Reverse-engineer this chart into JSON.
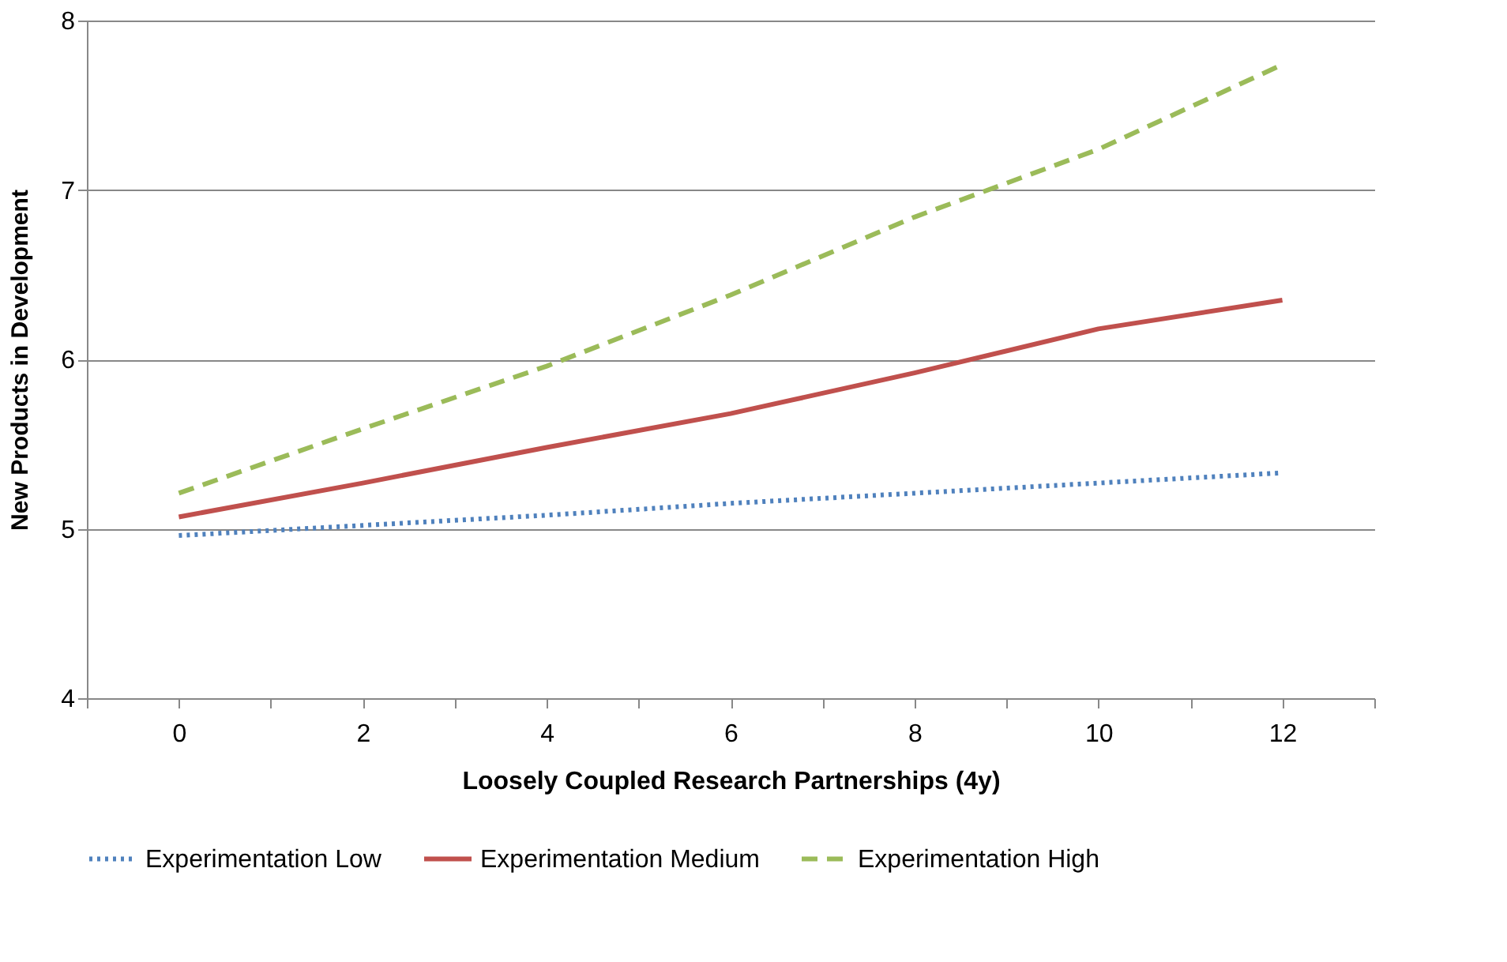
{
  "chart_data": {
    "type": "line",
    "xlabel": "Loosely Coupled Research Partnerships (4y)",
    "ylabel": "New Products in Development",
    "x": [
      0,
      2,
      4,
      6,
      8,
      10,
      12
    ],
    "series": [
      {
        "name": "Experimentation Low",
        "color": "#4f81bd",
        "line_style": "dotted",
        "values": [
          4.96,
          5.02,
          5.08,
          5.15,
          5.21,
          5.27,
          5.33
        ]
      },
      {
        "name": "Experimentation Medium",
        "color": "#c0504d",
        "line_style": "solid",
        "values": [
          5.07,
          5.27,
          5.48,
          5.68,
          5.92,
          6.18,
          6.35
        ]
      },
      {
        "name": "Experimentation High",
        "color": "#9bbb59",
        "line_style": "dashed",
        "values": [
          5.21,
          5.59,
          5.96,
          6.38,
          6.84,
          7.24,
          7.74
        ]
      }
    ],
    "xlim": [
      -1,
      13
    ],
    "xticks": [
      {
        "value": -1,
        "label": null
      },
      0,
      {
        "value": 1,
        "label": null
      },
      2,
      {
        "value": 3,
        "label": null
      },
      4,
      {
        "value": 5,
        "label": null
      },
      6,
      {
        "value": 7,
        "label": null
      },
      8,
      {
        "value": 9,
        "label": null
      },
      10,
      {
        "value": 11,
        "label": null
      },
      12,
      {
        "value": 13,
        "label": null
      }
    ],
    "ylim": [
      4,
      8
    ],
    "yticks": [
      4,
      5,
      6,
      7,
      8
    ],
    "grid": "y",
    "legend": "bottom",
    "marker": "none"
  }
}
